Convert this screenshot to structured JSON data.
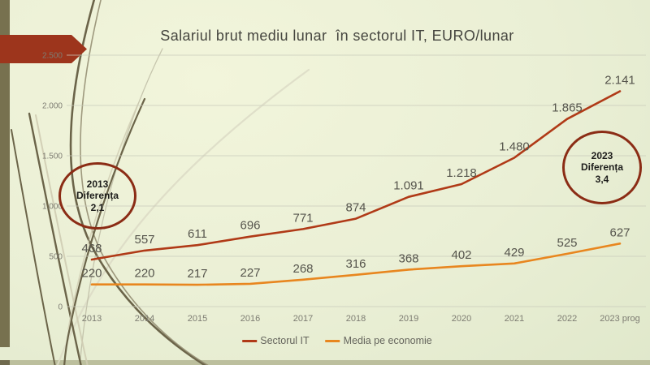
{
  "slide": {
    "title": "Salariul brut mediu lunar  în sectorul IT, EURO/lunar"
  },
  "annotations": {
    "circle_2013": {
      "line1": "2013",
      "line2": "Diferența",
      "line3": "2,1"
    },
    "circle_2023": {
      "line1": "2023",
      "line2": "Diferența",
      "line3": "3,4"
    }
  },
  "chart_data": {
    "type": "line",
    "title": "Salariul brut mediu lunar în sectorul IT, EURO/lunar",
    "xlabel": "",
    "ylabel": "",
    "ylim": [
      0,
      2500
    ],
    "grid": true,
    "legend_position": "bottom",
    "categories": [
      "2013",
      "2014",
      "2015",
      "2016",
      "2017",
      "2018",
      "2019",
      "2020",
      "2021",
      "2022",
      "2023 prog"
    ],
    "y_ticks": [
      {
        "v": 0,
        "label": "0"
      },
      {
        "v": 500,
        "label": "500"
      },
      {
        "v": 1000,
        "label": "1.000"
      },
      {
        "v": 1500,
        "label": "1.500"
      },
      {
        "v": 2000,
        "label": "2.000"
      },
      {
        "v": 2500,
        "label": "2.500"
      }
    ],
    "series": [
      {
        "name": "Sectorul IT",
        "color": "#b03a17",
        "values": [
          468,
          557,
          611,
          696,
          771,
          874,
          1091,
          1218,
          1480,
          1865,
          2141
        ],
        "labels": [
          "468",
          "557",
          "611",
          "696",
          "771",
          "874",
          "1.091",
          "1.218",
          "1.480",
          "1.865",
          "2.141"
        ]
      },
      {
        "name": "Media pe economie",
        "color": "#e8861f",
        "values": [
          220,
          220,
          217,
          227,
          268,
          316,
          368,
          402,
          429,
          525,
          627
        ],
        "labels": [
          "220",
          "220",
          "217",
          "227",
          "268",
          "316",
          "368",
          "402",
          "429",
          "525",
          "627"
        ]
      }
    ]
  },
  "colors": {
    "arrow": "#9d351c",
    "left_band": "#77714f",
    "bottom_strip": "#bcbf9d",
    "bottom_strip_left": "#6f6a4e",
    "circle_stroke": "#8b2c15",
    "grid_line": "#c9cbbb",
    "title_text": "#45453f",
    "tick_text": "#7d7c72",
    "data_label_text": "#55544c",
    "vine_dark": "#6b6449",
    "vine_light": "#cfccb2"
  }
}
